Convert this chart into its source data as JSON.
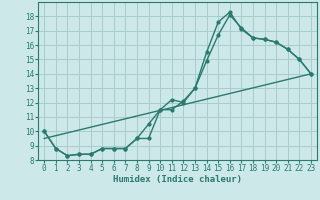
{
  "xlabel": "Humidex (Indice chaleur)",
  "background_color": "#cce8e8",
  "line_color": "#2a7a6f",
  "grid_color": "#aacccc",
  "ylim": [
    8,
    19
  ],
  "xlim": [
    -0.5,
    23.5
  ],
  "yticks": [
    8,
    9,
    10,
    11,
    12,
    13,
    14,
    15,
    16,
    17,
    18
  ],
  "xticks": [
    0,
    1,
    2,
    3,
    4,
    5,
    6,
    7,
    8,
    9,
    10,
    11,
    12,
    13,
    14,
    15,
    16,
    17,
    18,
    19,
    20,
    21,
    22,
    23
  ],
  "line1_x": [
    0,
    1,
    2,
    3,
    4,
    5,
    6,
    7,
    8,
    9,
    10,
    11,
    12,
    13,
    14,
    15,
    16,
    17,
    18,
    19,
    20,
    21,
    22,
    23
  ],
  "line1_y": [
    10.0,
    8.8,
    8.3,
    8.4,
    8.4,
    8.8,
    8.8,
    8.8,
    9.5,
    9.5,
    11.5,
    11.5,
    12.1,
    13.0,
    14.9,
    16.7,
    18.1,
    17.2,
    16.5,
    16.4,
    16.2,
    15.7,
    15.0,
    14.0
  ],
  "line2_x": [
    0,
    1,
    2,
    3,
    4,
    5,
    6,
    7,
    8,
    9,
    10,
    11,
    12,
    13,
    14,
    15,
    16,
    17,
    18,
    19,
    20,
    21,
    22,
    23
  ],
  "line2_y": [
    10.0,
    8.8,
    8.3,
    8.4,
    8.4,
    8.8,
    8.8,
    8.8,
    9.5,
    10.5,
    11.5,
    12.2,
    12.0,
    13.0,
    15.5,
    17.6,
    18.3,
    17.1,
    16.5,
    16.4,
    16.2,
    15.7,
    15.0,
    14.0
  ],
  "line3_x": [
    0,
    23
  ],
  "line3_y": [
    9.5,
    14.0
  ]
}
